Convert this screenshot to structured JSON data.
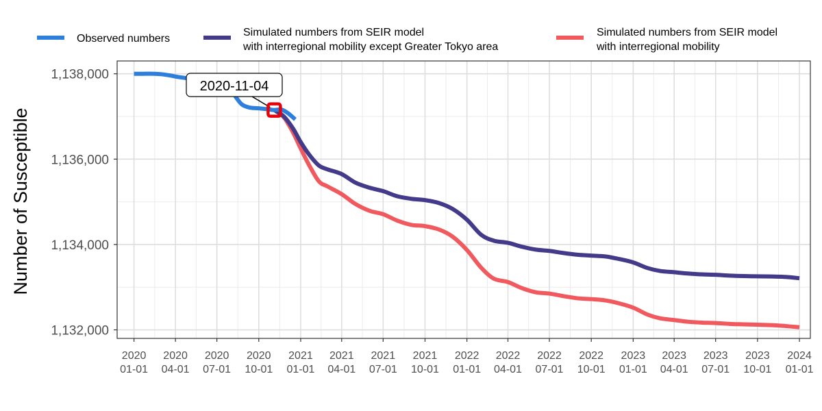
{
  "chart_data": {
    "type": "line",
    "title": "",
    "xlabel": "",
    "ylabel": "Number of Susceptible",
    "ylim": [
      1131800,
      1138300
    ],
    "xlim": [
      "2019-11-25",
      "2024-01-25"
    ],
    "yticks": [
      {
        "value": 1132000,
        "label": "1,132,000"
      },
      {
        "value": 1134000,
        "label": "1,134,000"
      },
      {
        "value": 1136000,
        "label": "1,136,000"
      },
      {
        "value": 1138000,
        "label": "1,138,000"
      }
    ],
    "xticks": [
      {
        "date": "2020-01-01",
        "line1": "2020",
        "line2": "01-01"
      },
      {
        "date": "2020-04-01",
        "line1": "2020",
        "line2": "04-01"
      },
      {
        "date": "2020-07-01",
        "line1": "2020",
        "line2": "07-01"
      },
      {
        "date": "2020-10-01",
        "line1": "2020",
        "line2": "10-01"
      },
      {
        "date": "2021-01-01",
        "line1": "2021",
        "line2": "01-01"
      },
      {
        "date": "2021-04-01",
        "line1": "2021",
        "line2": "04-01"
      },
      {
        "date": "2021-07-01",
        "line1": "2021",
        "line2": "07-01"
      },
      {
        "date": "2021-10-01",
        "line1": "2021",
        "line2": "10-01"
      },
      {
        "date": "2022-01-01",
        "line1": "2022",
        "line2": "01-01"
      },
      {
        "date": "2022-04-01",
        "line1": "2022",
        "line2": "04-01"
      },
      {
        "date": "2022-07-01",
        "line1": "2022",
        "line2": "07-01"
      },
      {
        "date": "2022-10-01",
        "line1": "2022",
        "line2": "10-01"
      },
      {
        "date": "2023-01-01",
        "line1": "2023",
        "line2": "01-01"
      },
      {
        "date": "2023-04-01",
        "line1": "2023",
        "line2": "04-01"
      },
      {
        "date": "2023-07-01",
        "line1": "2023",
        "line2": "07-01"
      },
      {
        "date": "2023-10-01",
        "line1": "2023",
        "line2": "10-01"
      },
      {
        "date": "2024-01-01",
        "line1": "2024",
        "line2": "01-01"
      }
    ],
    "grid": true,
    "legend_position": "top",
    "annotation": {
      "date": "2020-11-04",
      "value": 1137150,
      "label": "2020-11-04",
      "marker_color": "#e8000b"
    },
    "series": [
      {
        "name": "Observed numbers",
        "legend_lines": [
          "Observed numbers"
        ],
        "color": "#2e7fdc",
        "points": [
          [
            "2020-01-01",
            1138000
          ],
          [
            "2020-01-20",
            1138000
          ],
          [
            "2020-02-15",
            1138000
          ],
          [
            "2020-03-01",
            1137990
          ],
          [
            "2020-03-20",
            1137960
          ],
          [
            "2020-04-10",
            1137920
          ],
          [
            "2020-05-10",
            1137880
          ],
          [
            "2020-06-10",
            1137850
          ],
          [
            "2020-07-01",
            1137820
          ],
          [
            "2020-07-20",
            1137770
          ],
          [
            "2020-08-01",
            1137650
          ],
          [
            "2020-08-12",
            1137450
          ],
          [
            "2020-08-25",
            1137280
          ],
          [
            "2020-09-10",
            1137210
          ],
          [
            "2020-10-01",
            1137190
          ],
          [
            "2020-10-20",
            1137170
          ],
          [
            "2020-11-04",
            1137150
          ],
          [
            "2020-11-20",
            1137160
          ],
          [
            "2020-12-05",
            1137070
          ],
          [
            "2020-12-20",
            1136930
          ]
        ]
      },
      {
        "name": "Simulated numbers from SEIR model with interregional mobility except Greater Tokyo area",
        "legend_lines": [
          "Simulated numbers from SEIR model",
          "with interregional mobility except Greater Tokyo area"
        ],
        "color": "#433a89",
        "points": [
          [
            "2020-11-04",
            1137150
          ],
          [
            "2020-11-25",
            1137000
          ],
          [
            "2020-12-15",
            1136720
          ],
          [
            "2021-01-01",
            1136400
          ],
          [
            "2021-01-20",
            1136100
          ],
          [
            "2021-02-10",
            1135850
          ],
          [
            "2021-03-01",
            1135760
          ],
          [
            "2021-04-01",
            1135650
          ],
          [
            "2021-05-01",
            1135450
          ],
          [
            "2021-06-01",
            1135330
          ],
          [
            "2021-07-01",
            1135250
          ],
          [
            "2021-08-01",
            1135130
          ],
          [
            "2021-09-01",
            1135070
          ],
          [
            "2021-10-01",
            1135040
          ],
          [
            "2021-11-01",
            1134970
          ],
          [
            "2021-12-01",
            1134830
          ],
          [
            "2022-01-01",
            1134580
          ],
          [
            "2022-02-01",
            1134230
          ],
          [
            "2022-03-01",
            1134090
          ],
          [
            "2022-04-01",
            1134040
          ],
          [
            "2022-05-01",
            1133950
          ],
          [
            "2022-06-01",
            1133880
          ],
          [
            "2022-07-01",
            1133850
          ],
          [
            "2022-08-01",
            1133800
          ],
          [
            "2022-09-01",
            1133760
          ],
          [
            "2022-10-01",
            1133740
          ],
          [
            "2022-11-01",
            1133720
          ],
          [
            "2022-12-01",
            1133660
          ],
          [
            "2023-01-01",
            1133580
          ],
          [
            "2023-02-01",
            1133450
          ],
          [
            "2023-03-01",
            1133380
          ],
          [
            "2023-04-01",
            1133350
          ],
          [
            "2023-05-01",
            1133320
          ],
          [
            "2023-06-01",
            1133300
          ],
          [
            "2023-07-01",
            1133290
          ],
          [
            "2023-08-01",
            1133270
          ],
          [
            "2023-09-01",
            1133260
          ],
          [
            "2023-10-01",
            1133255
          ],
          [
            "2023-11-01",
            1133250
          ],
          [
            "2023-12-01",
            1133240
          ],
          [
            "2024-01-01",
            1133210
          ]
        ]
      },
      {
        "name": "Simulated numbers from SEIR model with interregional mobility",
        "legend_lines": [
          "Simulated numbers from SEIR model",
          "with interregional mobility"
        ],
        "color": "#f05a5e",
        "points": [
          [
            "2020-11-04",
            1137150
          ],
          [
            "2020-11-25",
            1136980
          ],
          [
            "2020-12-15",
            1136630
          ],
          [
            "2021-01-01",
            1136250
          ],
          [
            "2021-01-20",
            1135850
          ],
          [
            "2021-02-10",
            1135480
          ],
          [
            "2021-03-01",
            1135360
          ],
          [
            "2021-04-01",
            1135180
          ],
          [
            "2021-05-01",
            1134950
          ],
          [
            "2021-06-01",
            1134790
          ],
          [
            "2021-07-01",
            1134710
          ],
          [
            "2021-08-01",
            1134560
          ],
          [
            "2021-09-01",
            1134460
          ],
          [
            "2021-10-01",
            1134430
          ],
          [
            "2021-11-01",
            1134350
          ],
          [
            "2021-12-01",
            1134180
          ],
          [
            "2022-01-01",
            1133870
          ],
          [
            "2022-02-01",
            1133460
          ],
          [
            "2022-03-01",
            1133200
          ],
          [
            "2022-04-01",
            1133120
          ],
          [
            "2022-05-01",
            1132980
          ],
          [
            "2022-06-01",
            1132880
          ],
          [
            "2022-07-01",
            1132850
          ],
          [
            "2022-08-01",
            1132790
          ],
          [
            "2022-09-01",
            1132740
          ],
          [
            "2022-10-01",
            1132720
          ],
          [
            "2022-11-01",
            1132690
          ],
          [
            "2022-12-01",
            1132620
          ],
          [
            "2023-01-01",
            1132520
          ],
          [
            "2023-02-01",
            1132360
          ],
          [
            "2023-03-01",
            1132270
          ],
          [
            "2023-04-01",
            1132230
          ],
          [
            "2023-05-01",
            1132190
          ],
          [
            "2023-06-01",
            1132170
          ],
          [
            "2023-07-01",
            1132160
          ],
          [
            "2023-08-01",
            1132140
          ],
          [
            "2023-09-01",
            1132130
          ],
          [
            "2023-10-01",
            1132120
          ],
          [
            "2023-11-01",
            1132110
          ],
          [
            "2023-12-01",
            1132090
          ],
          [
            "2024-01-01",
            1132060
          ]
        ]
      }
    ]
  }
}
